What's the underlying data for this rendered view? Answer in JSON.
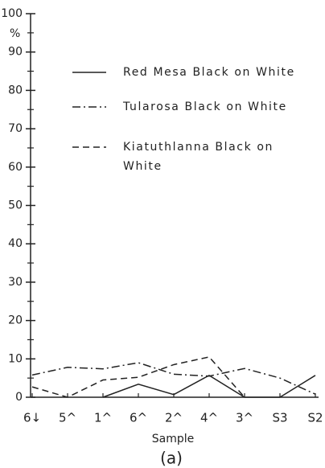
{
  "chart_data": {
    "type": "line",
    "y_unit": "%",
    "xlabel": "Sample",
    "caption": "(a)",
    "categories": [
      "6↓",
      "5^",
      "1^",
      "6^",
      "2^",
      "4^",
      "3^",
      "S3",
      "S2"
    ],
    "series": [
      {
        "name": "Red Mesa Black on White",
        "color": "#222222",
        "dash": "solid",
        "values": [
          null,
          null,
          0,
          3.4,
          0.7,
          5.7,
          0,
          0,
          5.7
        ]
      },
      {
        "name": "Tularosa Black on White",
        "color": "#222222",
        "dash": "dashdot",
        "values": [
          5.8,
          7.8,
          7.4,
          9,
          6,
          5.5,
          7.5,
          5,
          0.8
        ]
      },
      {
        "name": "Kiatuthlanna Black on White",
        "color": "#222222",
        "dash": "dashed",
        "values": [
          2.7,
          0,
          4.5,
          5.2,
          8.5,
          10.5,
          0,
          null,
          null
        ]
      }
    ],
    "ylim": [
      0,
      100
    ],
    "yticks": [
      0,
      10,
      20,
      30,
      40,
      50,
      60,
      70,
      80,
      90,
      100
    ],
    "yminorticks": [
      5,
      15,
      25,
      35,
      45,
      55,
      65,
      75,
      85,
      95
    ],
    "legend": "top"
  }
}
